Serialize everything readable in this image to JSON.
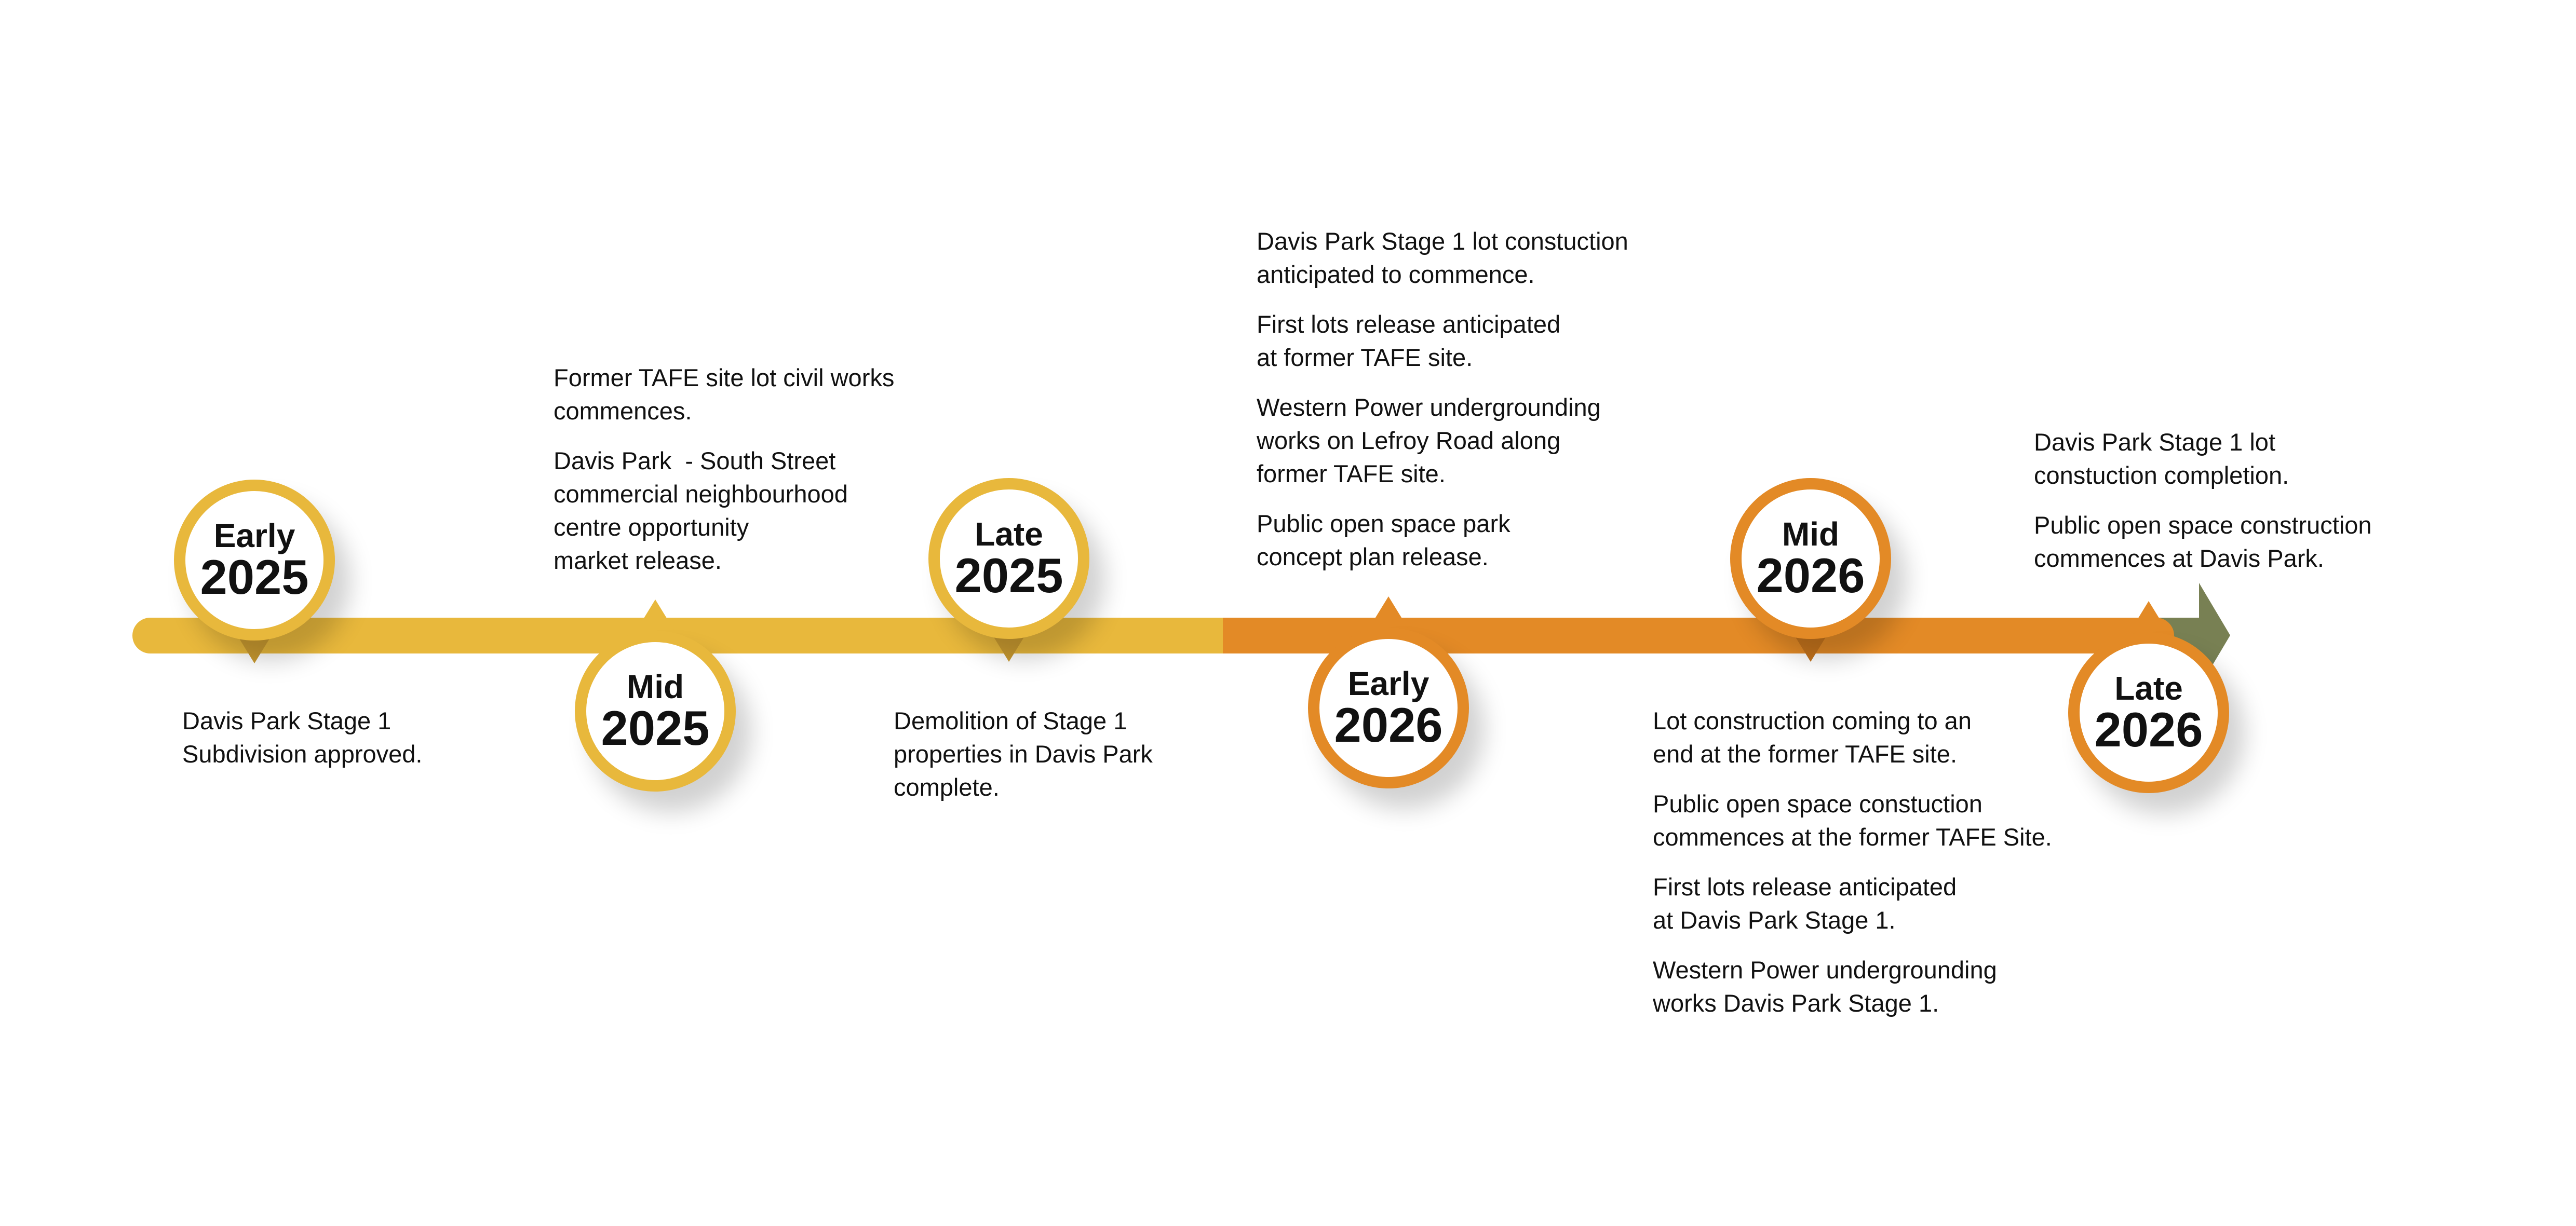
{
  "colors": {
    "phase_2025": "#E8B83C",
    "phase_2026": "#E38A26",
    "arrow": "#788053"
  },
  "milestones": [
    {
      "period": "Early",
      "year": "2025",
      "color": "#E8B83C",
      "position": "below-text",
      "notes": [
        [
          "Davis Park Stage 1",
          "Subdivision approved."
        ]
      ]
    },
    {
      "period": "Mid",
      "year": "2025",
      "color": "#E8B83C",
      "position": "above-text",
      "notes": [
        [
          "Former TAFE site lot civil works",
          "commences."
        ],
        [
          "Davis Park  - South Street",
          "commercial neighbourhood",
          "centre opportunity",
          "market release."
        ]
      ]
    },
    {
      "period": "Late",
      "year": "2025",
      "color": "#E8B83C",
      "position": "below-text",
      "notes": [
        [
          "Demolition of Stage 1",
          "properties in Davis Park",
          "complete."
        ]
      ]
    },
    {
      "period": "Early",
      "year": "2026",
      "color": "#E38A26",
      "position": "above-text",
      "notes": [
        [
          "Davis Park Stage 1 lot constuction",
          "anticipated to commence."
        ],
        [
          "First lots release anticipated",
          "at former TAFE site."
        ],
        [
          "Western Power undergrounding",
          "works on Lefroy Road along",
          "former TAFE site."
        ],
        [
          "Public open space park",
          "concept plan release."
        ]
      ]
    },
    {
      "period": "Mid",
      "year": "2026",
      "color": "#E38A26",
      "position": "below-text",
      "notes": [
        [
          "Lot construction coming to an",
          "end at the former TAFE site."
        ],
        [
          "Public open space constuction",
          "commences at the former TAFE Site."
        ],
        [
          "First lots release anticipated",
          "at Davis Park Stage 1."
        ],
        [
          "Western Power undergrounding",
          "works Davis Park Stage 1."
        ]
      ]
    },
    {
      "period": "Late",
      "year": "2026",
      "color": "#E38A26",
      "position": "above-text",
      "notes": [
        [
          "Davis Park Stage 1 lot",
          "constuction completion."
        ],
        [
          "Public open space construction",
          "commences at Davis Park."
        ]
      ]
    }
  ]
}
